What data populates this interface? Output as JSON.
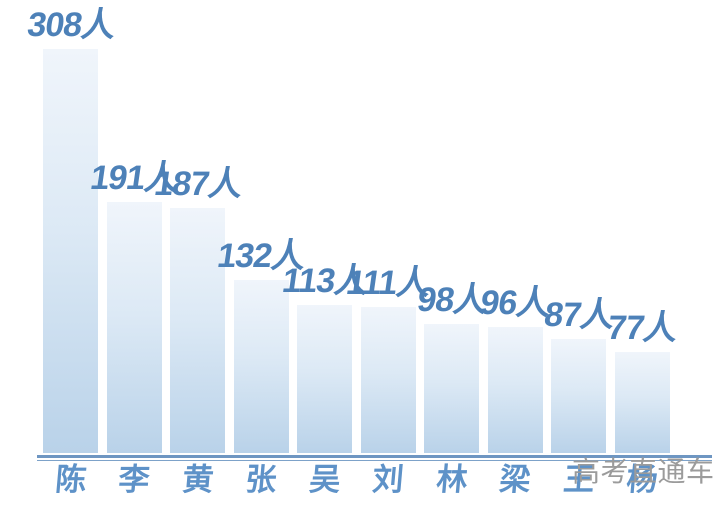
{
  "chart_data": {
    "type": "bar",
    "categories": [
      "陈",
      "李",
      "黄",
      "张",
      "吴",
      "刘",
      "林",
      "梁",
      "王",
      "杨"
    ],
    "values": [
      308,
      191,
      187,
      132,
      113,
      111,
      98,
      96,
      87,
      77
    ],
    "value_labels": [
      "308人",
      "191人",
      "187人",
      "132人",
      "113人",
      "111人",
      "98人",
      "96人",
      "87人",
      "77人"
    ],
    "value_suffix": "人",
    "title": "",
    "xlabel": "",
    "ylabel": "",
    "ylim": [
      0,
      308
    ],
    "grid": false,
    "legend": false,
    "colors": {
      "bar_gradient_top": "#f0f5fb",
      "bar_gradient_bottom": "#b9d2e9",
      "value_label": "#4d81b8",
      "category_label": "#5e92c8",
      "axis_line": "#6e96c2",
      "watermark": "#9b9b9b"
    }
  },
  "watermark": {
    "text": "高考直通车"
  }
}
